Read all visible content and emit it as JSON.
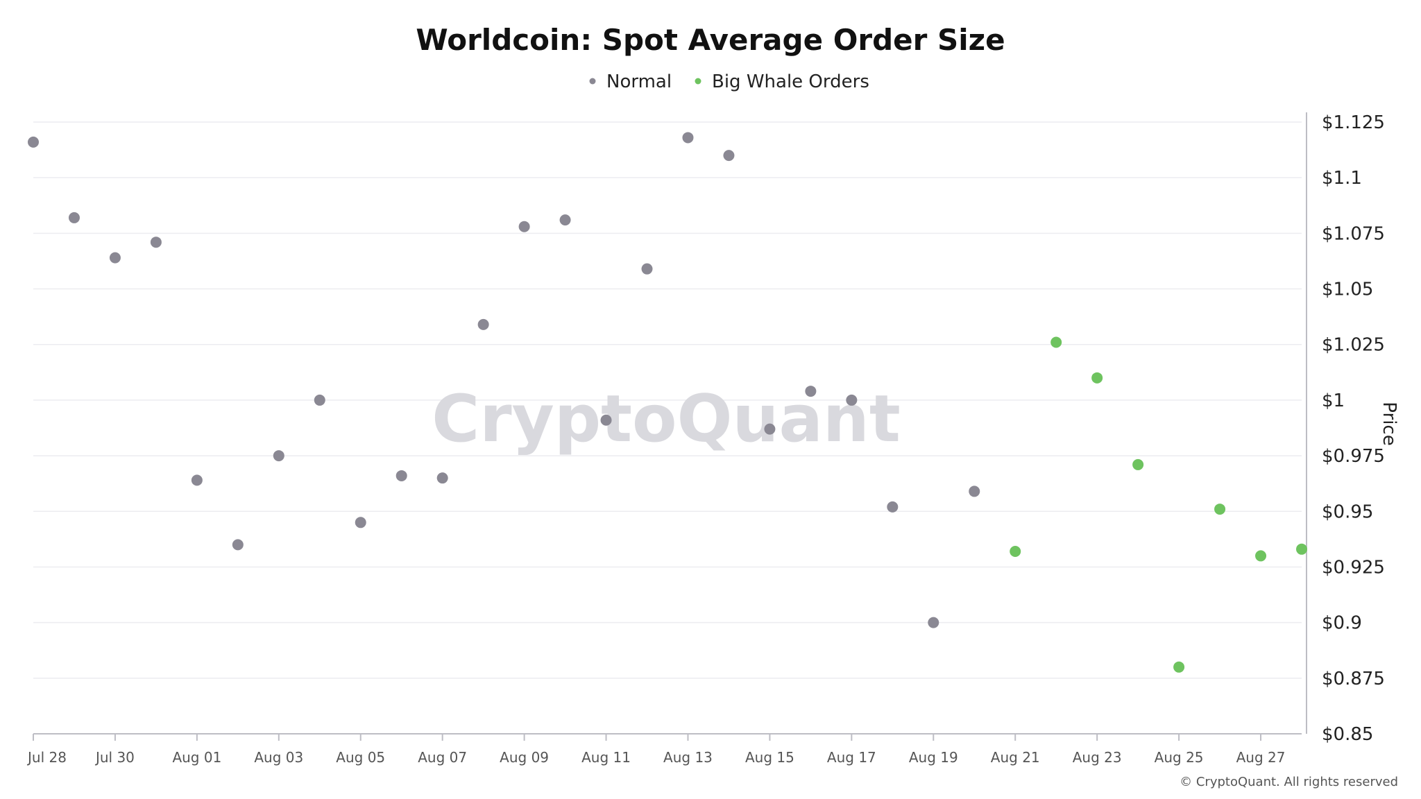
{
  "chart_data": {
    "type": "scatter",
    "title": "Worldcoin: Spot Average Order Size",
    "ylabel": "Price",
    "ylim": [
      0.85,
      1.125
    ],
    "y_scale": "linear",
    "grid": true,
    "legend_placement": "top-center",
    "y_ticks": [
      "$1.125",
      "$1.1",
      "$1.075",
      "$1.05",
      "$1.025",
      "$1",
      "$0.975",
      "$0.95",
      "$0.925",
      "$0.9",
      "$0.875",
      "$0.85"
    ],
    "x_ticks": [
      "Jul 28",
      "Jul 30",
      "Aug 01",
      "Aug 03",
      "Aug 05",
      "Aug 07",
      "Aug 09",
      "Aug 11",
      "Aug 13",
      "Aug 15",
      "Aug 17",
      "Aug 19",
      "Aug 21",
      "Aug 23",
      "Aug 25",
      "Aug 27"
    ],
    "x": [
      "Jul 28",
      "Jul 29",
      "Jul 30",
      "Jul 31",
      "Aug 01",
      "Aug 02",
      "Aug 03",
      "Aug 04",
      "Aug 05",
      "Aug 06",
      "Aug 07",
      "Aug 08",
      "Aug 09",
      "Aug 10",
      "Aug 11",
      "Aug 12",
      "Aug 13",
      "Aug 14",
      "Aug 15",
      "Aug 16",
      "Aug 17",
      "Aug 18",
      "Aug 19",
      "Aug 20",
      "Aug 21",
      "Aug 22",
      "Aug 23",
      "Aug 24",
      "Aug 25",
      "Aug 26",
      "Aug 27",
      "Aug 28"
    ],
    "series": [
      {
        "name": "Normal",
        "color": "#8a8893",
        "values": [
          1.116,
          1.082,
          1.064,
          1.071,
          0.964,
          0.935,
          0.975,
          1.0,
          0.945,
          0.966,
          0.965,
          1.034,
          1.078,
          1.081,
          0.991,
          1.059,
          1.118,
          1.11,
          0.987,
          1.004,
          1.0,
          0.952,
          0.9,
          0.959,
          null,
          null,
          null,
          null,
          null,
          null,
          null,
          null
        ]
      },
      {
        "name": "Big Whale Orders",
        "color": "#6ec35f",
        "values": [
          null,
          null,
          null,
          null,
          null,
          null,
          null,
          null,
          null,
          null,
          null,
          null,
          null,
          null,
          null,
          null,
          null,
          null,
          null,
          null,
          null,
          null,
          null,
          null,
          0.932,
          1.026,
          1.01,
          0.971,
          0.88,
          0.951,
          0.93,
          0.933
        ]
      }
    ]
  },
  "watermark": "CryptoQuant",
  "copyright": "© CryptoQuant. All rights reserved"
}
